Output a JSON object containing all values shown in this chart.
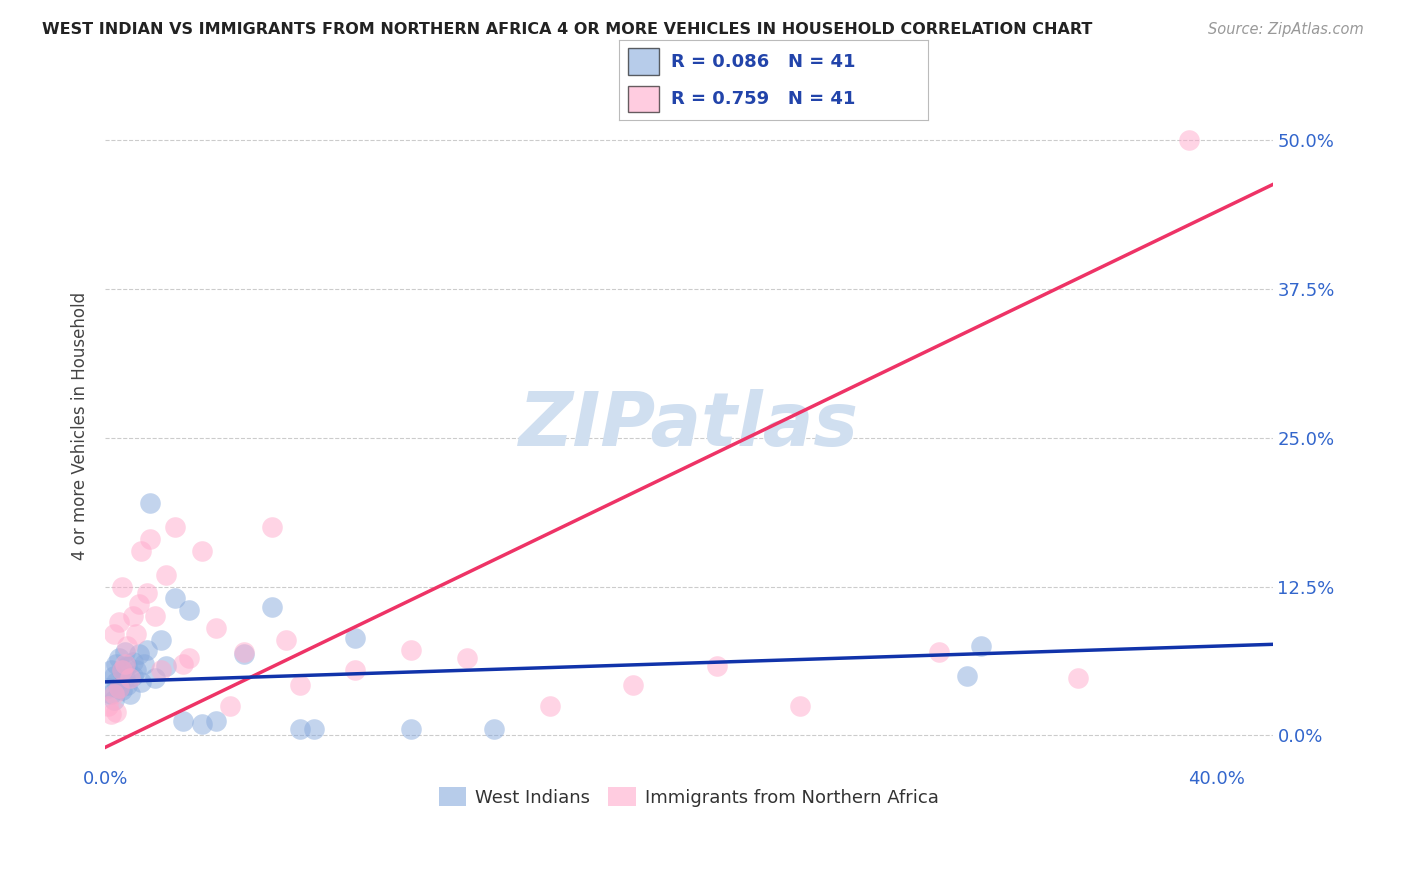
{
  "title": "WEST INDIAN VS IMMIGRANTS FROM NORTHERN AFRICA 4 OR MORE VEHICLES IN HOUSEHOLD CORRELATION CHART",
  "source": "Source: ZipAtlas.com",
  "xlabel_ticks": [
    "0.0%",
    "",
    "",
    "",
    "40.0%"
  ],
  "ylabel_label": "4 or more Vehicles in Household",
  "xlim": [
    0.0,
    0.42
  ],
  "ylim": [
    -0.025,
    0.545
  ],
  "watermark": "ZIPatlas",
  "west_indians_x": [
    0.001,
    0.002,
    0.002,
    0.003,
    0.003,
    0.004,
    0.004,
    0.005,
    0.005,
    0.006,
    0.006,
    0.007,
    0.007,
    0.008,
    0.008,
    0.009,
    0.01,
    0.01,
    0.011,
    0.012,
    0.013,
    0.014,
    0.015,
    0.016,
    0.018,
    0.02,
    0.022,
    0.025,
    0.028,
    0.03,
    0.035,
    0.04,
    0.05,
    0.06,
    0.07,
    0.075,
    0.09,
    0.11,
    0.14,
    0.31,
    0.315
  ],
  "west_indians_y": [
    0.04,
    0.055,
    0.035,
    0.05,
    0.03,
    0.045,
    0.06,
    0.04,
    0.065,
    0.038,
    0.055,
    0.048,
    0.07,
    0.042,
    0.058,
    0.035,
    0.062,
    0.05,
    0.055,
    0.068,
    0.045,
    0.06,
    0.072,
    0.195,
    0.048,
    0.08,
    0.058,
    0.115,
    0.012,
    0.105,
    0.01,
    0.012,
    0.068,
    0.108,
    0.005,
    0.005,
    0.082,
    0.005,
    0.005,
    0.05,
    0.075
  ],
  "north_africa_x": [
    0.001,
    0.002,
    0.003,
    0.003,
    0.004,
    0.005,
    0.005,
    0.006,
    0.006,
    0.007,
    0.008,
    0.009,
    0.01,
    0.011,
    0.012,
    0.013,
    0.015,
    0.016,
    0.018,
    0.02,
    0.022,
    0.025,
    0.028,
    0.03,
    0.035,
    0.04,
    0.045,
    0.05,
    0.06,
    0.065,
    0.07,
    0.09,
    0.11,
    0.13,
    0.16,
    0.19,
    0.22,
    0.25,
    0.3,
    0.35,
    0.39
  ],
  "north_africa_y": [
    0.025,
    0.018,
    0.035,
    0.085,
    0.02,
    0.04,
    0.095,
    0.055,
    0.125,
    0.06,
    0.075,
    0.048,
    0.1,
    0.085,
    0.11,
    0.155,
    0.12,
    0.165,
    0.1,
    0.055,
    0.135,
    0.175,
    0.06,
    0.065,
    0.155,
    0.09,
    0.025,
    0.07,
    0.175,
    0.08,
    0.042,
    0.055,
    0.072,
    0.065,
    0.025,
    0.042,
    0.058,
    0.025,
    0.07,
    0.048,
    0.5
  ],
  "west_indians_R": 0.086,
  "west_indians_N": 41,
  "north_africa_R": 0.759,
  "north_africa_N": 41,
  "blue_color": "#88aadd",
  "pink_color": "#ffaacc",
  "blue_line_color": "#1133aa",
  "pink_line_color": "#ee3366",
  "watermark_color": "#d0dff0",
  "grid_color": "#cccccc",
  "title_color": "#222222",
  "legend_text_color": "#2244aa",
  "source_color": "#999999",
  "tick_color": "#3366cc"
}
